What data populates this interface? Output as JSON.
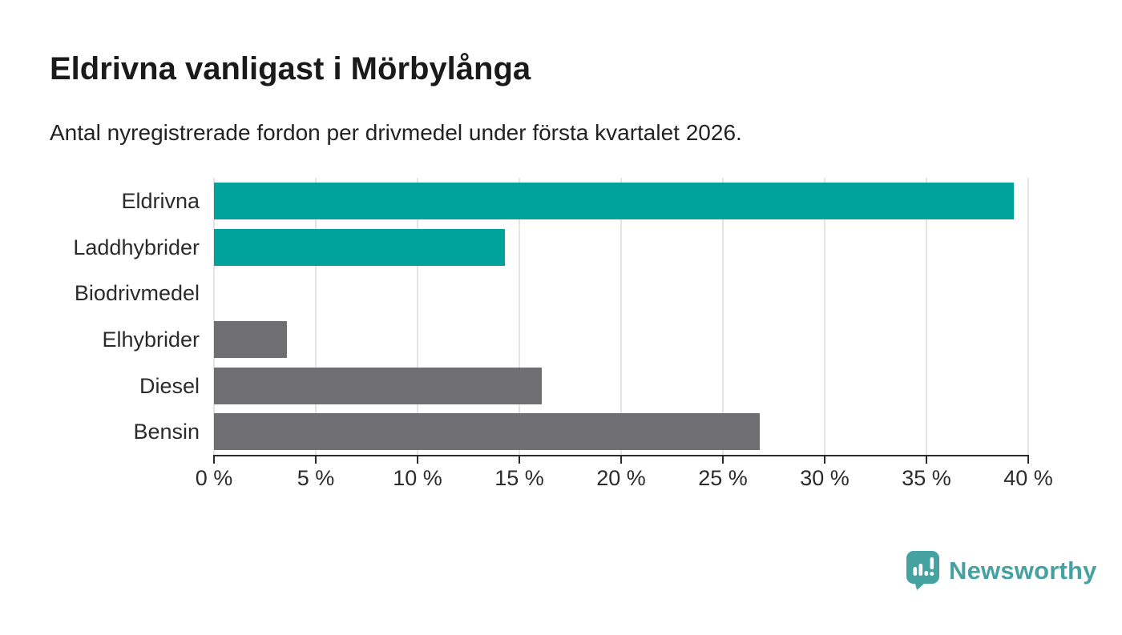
{
  "chart_data": {
    "type": "bar",
    "orientation": "horizontal",
    "title": "Eldrivna vanligast i Mörbylånga",
    "subtitle": "Antal nyregistrerade fordon per drivmedel under första kvartalet 2026.",
    "categories": [
      "Eldrivna",
      "Laddhybrider",
      "Biodrivmedel",
      "Elhybrider",
      "Diesel",
      "Bensin"
    ],
    "values": [
      39.3,
      14.3,
      0,
      3.6,
      16.1,
      26.8
    ],
    "unit": "%",
    "bar_colors": [
      "#00a39b",
      "#00a39b",
      "#6e6e73",
      "#6e6e73",
      "#6e6e73",
      "#6e6e73"
    ],
    "highlight_color": "#00a39b",
    "default_color": "#6e6e73",
    "xlim": [
      0,
      40
    ],
    "x_ticks": [
      0,
      5,
      10,
      15,
      20,
      25,
      30,
      35,
      40
    ],
    "x_tick_labels": [
      "0 %",
      "5 %",
      "10 %",
      "15 %",
      "20 %",
      "25 %",
      "30 %",
      "35 %",
      "40 %"
    ],
    "grid": "vertical-only",
    "gridline_color": "#e4e4e4",
    "axis_color": "#2b2b2b",
    "legend": "none"
  },
  "branding": {
    "logo_text": "Newsworthy",
    "logo_color": "#46a1a1",
    "logo_icon": "speech-bubble-bar-chart-exclamation"
  }
}
